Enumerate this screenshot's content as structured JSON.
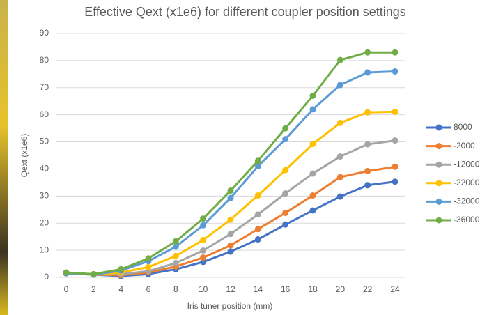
{
  "chart_data": {
    "type": "line",
    "title": "Effective Qext (x1e6) for different coupler position settings",
    "x_label": "Iris tuner position (mm)",
    "y_label": "Qext  (x1e6)",
    "x": [
      0,
      2,
      4,
      6,
      8,
      10,
      12,
      14,
      16,
      18,
      20,
      22,
      24
    ],
    "xlim": [
      0,
      24
    ],
    "xticks": [
      0,
      2,
      4,
      6,
      8,
      10,
      12,
      14,
      16,
      18,
      20,
      22,
      24
    ],
    "ylim": [
      0,
      90
    ],
    "yticks": [
      0,
      10,
      20,
      30,
      40,
      50,
      60,
      70,
      80,
      90
    ],
    "grid": true,
    "legend": "right",
    "series": [
      {
        "name": "8000",
        "color": "#4472c4",
        "values": [
          1.5,
          1,
          0.5,
          1.2,
          3,
          5.7,
          9.5,
          14,
          19.5,
          24.7,
          29.8,
          34,
          35.3
        ]
      },
      {
        "name": "-2000",
        "color": "#ed7d31",
        "values": [
          1.5,
          1,
          0.8,
          1.8,
          4,
          7.3,
          11.8,
          17.8,
          23.8,
          30.2,
          37,
          39.2,
          40.8
        ]
      },
      {
        "name": "-12000",
        "color": "#a5a5a5",
        "values": [
          1.5,
          1,
          1.2,
          2.3,
          5.3,
          9.9,
          16,
          23.2,
          31,
          38.3,
          44.6,
          49.1,
          50.5
        ]
      },
      {
        "name": "-22000",
        "color": "#ffc000",
        "values": [
          1.5,
          1,
          1.8,
          3.8,
          7.9,
          13.8,
          21.3,
          30.2,
          39.6,
          49.2,
          57,
          60.9,
          61.1
        ]
      },
      {
        "name": "-32000",
        "color": "#5b9bd5",
        "values": [
          1.5,
          1,
          2.5,
          6,
          11.3,
          19.2,
          29.3,
          41,
          51,
          62,
          71,
          75.6,
          76
        ]
      },
      {
        "name": "-36000",
        "color": "#70ad47",
        "values": [
          1.8,
          1.2,
          3,
          7,
          13.3,
          21.7,
          32,
          43,
          55,
          67,
          80.2,
          83,
          83
        ]
      }
    ]
  }
}
